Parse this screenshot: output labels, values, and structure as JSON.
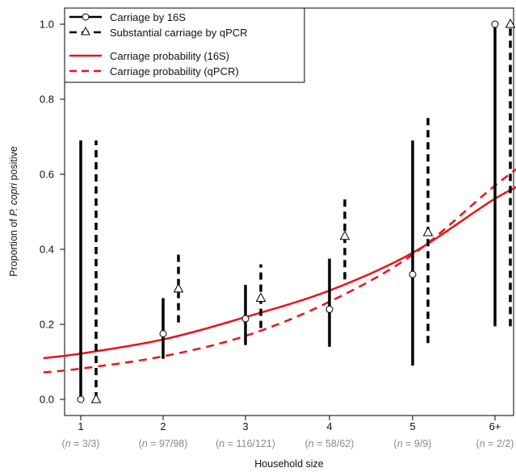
{
  "chart_data": {
    "type": "scatter",
    "xlabel": "Household size",
    "ylabel_prefix": "Proportion of ",
    "ylabel_italic": "P. copri",
    "ylabel_suffix": " positive",
    "ylim": [
      0.0,
      1.0
    ],
    "y_ticks": [
      "0.0",
      "0.2",
      "0.4",
      "0.6",
      "0.8",
      "1.0"
    ],
    "categories": [
      "1",
      "2",
      "3",
      "4",
      "5",
      "6+"
    ],
    "n_labels": [
      {
        "open": "(",
        "n": "n",
        "rest": " = 3/3)"
      },
      {
        "open": "(",
        "n": "n",
        "rest": " = 97/98)"
      },
      {
        "open": "(",
        "n": "n",
        "rest": " = 116/121)"
      },
      {
        "open": "(",
        "n": "n",
        "rest": " = 58/62)"
      },
      {
        "open": "(",
        "n": "n",
        "rest": " = 9/9)"
      },
      {
        "open": "(",
        "n": "n",
        "rest": " = 2/2)"
      }
    ],
    "series": [
      {
        "name": "Carriage by 16S",
        "color": "#000000",
        "marker": "circle",
        "line": "solid",
        "points": [
          0.0,
          0.175,
          0.215,
          0.24,
          0.333,
          1.0
        ],
        "ci_low": [
          0.0,
          0.108,
          0.145,
          0.14,
          0.09,
          0.195
        ],
        "ci_high": [
          0.69,
          0.27,
          0.305,
          0.375,
          0.69,
          1.0
        ]
      },
      {
        "name": "Substantial carriage by qPCR",
        "color": "#000000",
        "marker": "triangle",
        "line": "dashed",
        "points": [
          0.0,
          0.295,
          0.27,
          0.435,
          0.445,
          1.0
        ],
        "ci_low": [
          0.0,
          0.205,
          0.19,
          0.32,
          0.15,
          0.195
        ],
        "ci_high": [
          0.69,
          0.39,
          0.36,
          0.545,
          0.75,
          1.0
        ]
      }
    ],
    "fits": [
      {
        "name": "Carriage probability (16S)",
        "color": "#e8141a",
        "line": "solid",
        "curve": [
          [
            0.55,
            0.11
          ],
          [
            1.0,
            0.122
          ],
          [
            2.0,
            0.16
          ],
          [
            3.0,
            0.22
          ],
          [
            4.0,
            0.29
          ],
          [
            5.0,
            0.39
          ],
          [
            6.0,
            0.535
          ],
          [
            6.58,
            0.6
          ]
        ]
      },
      {
        "name": "Carriage probability (qPCR)",
        "color": "#e8141a",
        "line": "dashed",
        "curve": [
          [
            0.55,
            0.072
          ],
          [
            1.0,
            0.082
          ],
          [
            2.0,
            0.115
          ],
          [
            3.0,
            0.17
          ],
          [
            4.0,
            0.26
          ],
          [
            5.0,
            0.385
          ],
          [
            6.0,
            0.57
          ],
          [
            6.58,
            0.665
          ]
        ]
      }
    ],
    "legend_position": "top-left",
    "grid": false
  }
}
